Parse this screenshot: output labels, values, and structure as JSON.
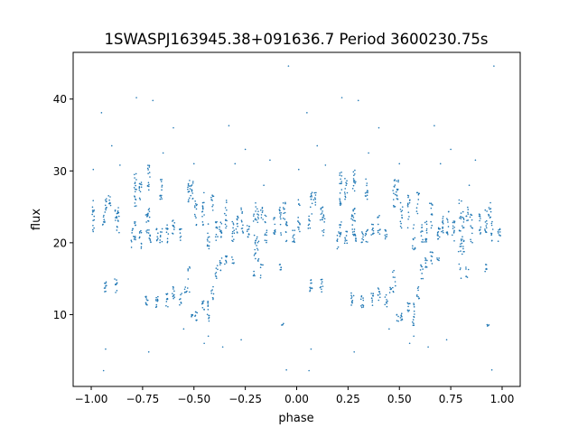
{
  "chart_data": {
    "type": "scatter",
    "title": "1SWASPJ163945.38+091636.7 Period 3600230.75s",
    "xlabel": "phase",
    "ylabel": "flux",
    "xlim": [
      -1.088,
      1.088
    ],
    "ylim": [
      0,
      46.5
    ],
    "xticks": [
      -1.0,
      -0.75,
      -0.5,
      -0.25,
      0.0,
      0.25,
      0.5,
      0.75,
      1.0
    ],
    "xtick_labels": [
      "−1.00",
      "−0.75",
      "−0.50",
      "−0.25",
      "0.00",
      "0.25",
      "0.50",
      "0.75",
      "1.00"
    ],
    "yticks": [
      10,
      20,
      30,
      40
    ],
    "ytick_labels": [
      "10",
      "20",
      "30",
      "40"
    ],
    "grid": false,
    "color": "#1f77b4",
    "phase_repeat_offset": 1.0,
    "streaks_note": "each streak = [phase, flux_min, flux_max, n_points]; drawn at phase and phase+1",
    "streaks": [
      [
        -0.99,
        21,
        26,
        14
      ],
      [
        -0.94,
        22,
        24,
        8
      ],
      [
        -0.93,
        24,
        27,
        10
      ],
      [
        -0.93,
        13,
        15,
        10
      ],
      [
        -0.91,
        25,
        27,
        8
      ],
      [
        -0.88,
        13,
        15,
        10
      ],
      [
        -0.88,
        23,
        25,
        8
      ],
      [
        -0.87,
        21,
        25,
        12
      ],
      [
        -0.8,
        19,
        22,
        8
      ],
      [
        -0.785,
        25,
        30,
        18
      ],
      [
        -0.785,
        20,
        23,
        10
      ],
      [
        -0.76,
        26,
        29,
        12
      ],
      [
        -0.76,
        19,
        22,
        10
      ],
      [
        -0.73,
        11,
        13,
        10
      ],
      [
        -0.73,
        21,
        24,
        10
      ],
      [
        -0.72,
        27,
        31,
        14
      ],
      [
        -0.72,
        23,
        25,
        8
      ],
      [
        -0.715,
        20,
        22,
        10
      ],
      [
        -0.68,
        11,
        13,
        10
      ],
      [
        -0.68,
        20,
        22,
        8
      ],
      [
        -0.66,
        26,
        29,
        12
      ],
      [
        -0.66,
        20,
        22,
        8
      ],
      [
        -0.63,
        11,
        13,
        10
      ],
      [
        -0.63,
        20,
        23,
        10
      ],
      [
        -0.6,
        12,
        14,
        10
      ],
      [
        -0.6,
        21,
        24,
        10
      ],
      [
        -0.565,
        11,
        13,
        8
      ],
      [
        -0.565,
        20,
        22,
        8
      ],
      [
        -0.54,
        13,
        14,
        6
      ],
      [
        -0.525,
        25,
        29,
        14
      ],
      [
        -0.525,
        13,
        17,
        8
      ],
      [
        -0.51,
        26,
        29,
        12
      ],
      [
        -0.51,
        9,
        10,
        5
      ],
      [
        -0.49,
        9,
        11,
        8
      ],
      [
        -0.49,
        22,
        26,
        12
      ],
      [
        -0.455,
        10,
        12,
        8
      ],
      [
        -0.455,
        22,
        27,
        14
      ],
      [
        -0.43,
        8.5,
        12,
        12
      ],
      [
        -0.43,
        19,
        23,
        12
      ],
      [
        -0.41,
        24,
        27,
        10
      ],
      [
        -0.41,
        12,
        14,
        8
      ],
      [
        -0.39,
        15,
        17,
        8
      ],
      [
        -0.39,
        20,
        23,
        10
      ],
      [
        -0.37,
        20,
        23,
        12
      ],
      [
        -0.37,
        16,
        18,
        8
      ],
      [
        -0.345,
        17,
        19,
        8
      ],
      [
        -0.345,
        22,
        26,
        12
      ],
      [
        -0.31,
        20,
        23,
        12
      ],
      [
        -0.31,
        17,
        18,
        5
      ],
      [
        -0.29,
        21,
        24,
        12
      ],
      [
        -0.265,
        21,
        25,
        12
      ],
      [
        -0.235,
        20,
        23,
        12
      ],
      [
        -0.205,
        15,
        22,
        14
      ],
      [
        -0.205,
        23,
        26,
        8
      ],
      [
        -0.19,
        17,
        21,
        10
      ],
      [
        -0.19,
        22,
        25,
        8
      ],
      [
        -0.17,
        15,
        17,
        6
      ],
      [
        -0.17,
        23,
        25,
        8
      ],
      [
        -0.15,
        20,
        24,
        12
      ],
      [
        -0.11,
        21,
        24,
        12
      ],
      [
        -0.08,
        16,
        17,
        6
      ],
      [
        -0.08,
        21,
        25,
        12
      ],
      [
        -0.06,
        23,
        26,
        10
      ],
      [
        -0.05,
        20,
        23,
        10
      ],
      [
        -0.015,
        20,
        22,
        10
      ],
      [
        -0.07,
        8.4,
        8.8,
        4
      ]
    ],
    "outliers": [
      [
        -0.95,
        38.1
      ],
      [
        -0.78,
        40.2
      ],
      [
        -0.7,
        39.8
      ],
      [
        -0.9,
        33.5
      ],
      [
        -0.99,
        30.2
      ],
      [
        -0.6,
        36.0
      ],
      [
        -0.43,
        7.0
      ],
      [
        -0.36,
        5.5
      ],
      [
        -0.45,
        6.0
      ],
      [
        -0.93,
        5.2
      ],
      [
        -0.72,
        4.8
      ],
      [
        -0.65,
        32.5
      ],
      [
        -0.33,
        36.3
      ],
      [
        -0.25,
        33.0
      ],
      [
        -0.04,
        44.6
      ],
      [
        -0.13,
        31.5
      ],
      [
        -0.5,
        31.0
      ],
      [
        -0.27,
        6.5
      ],
      [
        -0.94,
        2.2
      ],
      [
        -0.05,
        2.3
      ],
      [
        -0.16,
        28.0
      ],
      [
        -0.86,
        30.8
      ],
      [
        -0.55,
        8.0
      ],
      [
        -0.3,
        31.0
      ]
    ]
  }
}
